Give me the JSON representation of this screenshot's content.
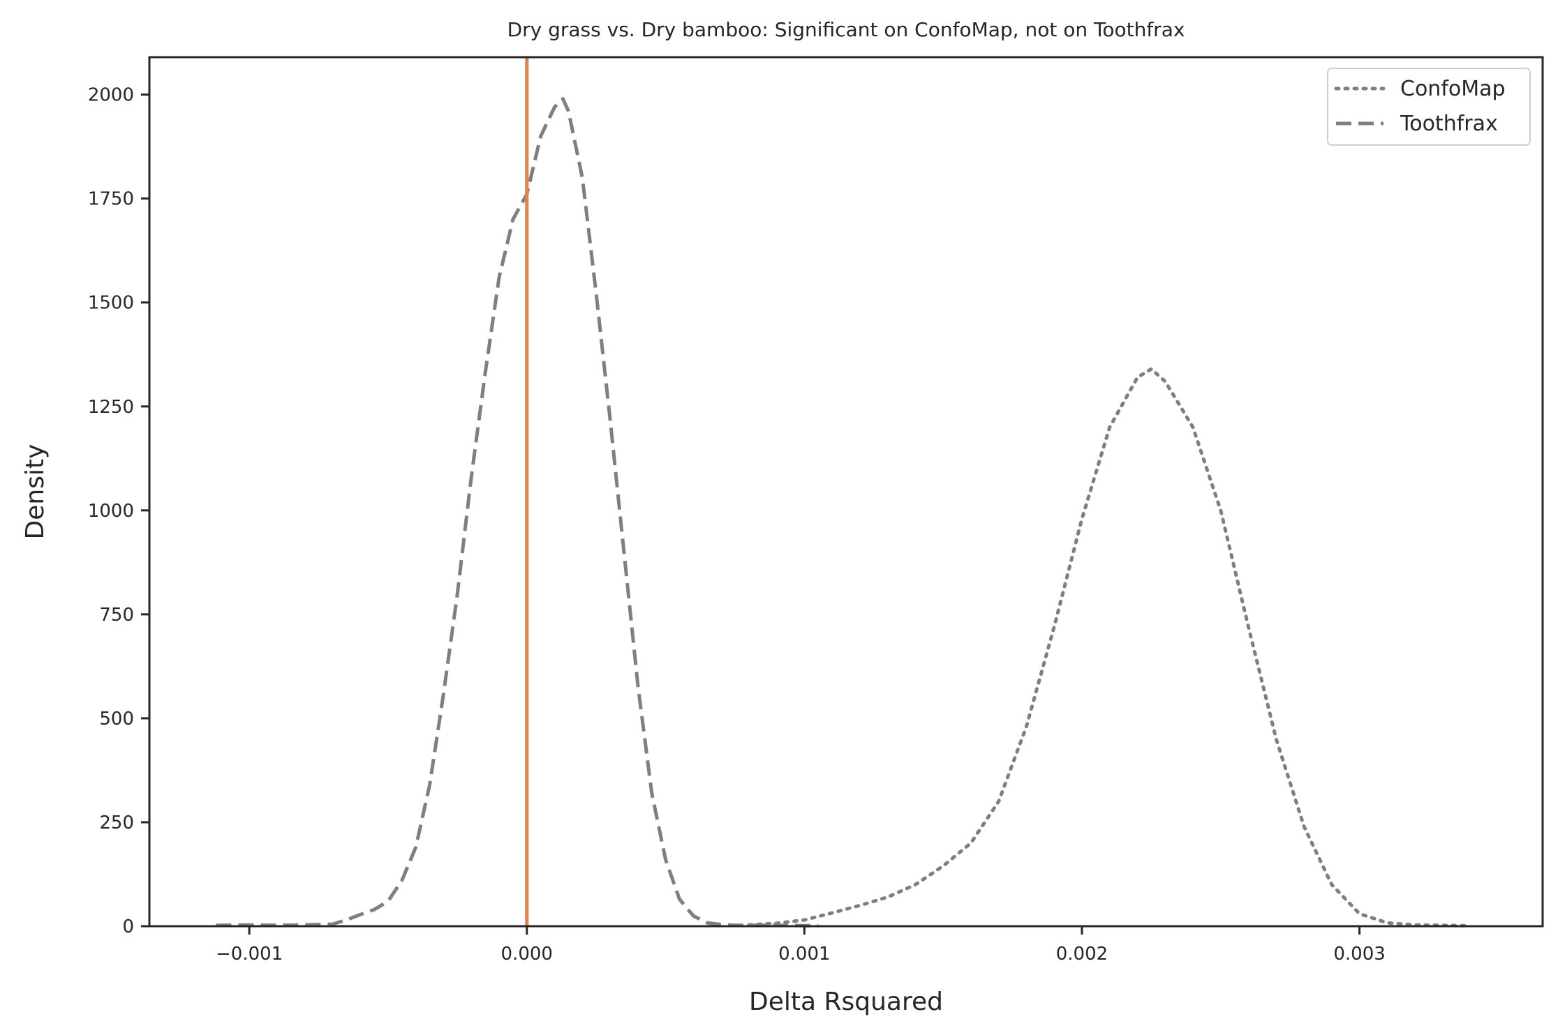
{
  "chart_data": {
    "type": "line",
    "title": "Dry grass vs. Dry bamboo: Significant on ConfoMap, not on Toothfrax",
    "xlabel": "Delta Rsquared",
    "ylabel": "Density",
    "xlim": [
      -0.00136,
      0.00366
    ],
    "ylim": [
      0,
      2090
    ],
    "xticks": [
      -0.001,
      0.0,
      0.001,
      0.002,
      0.003
    ],
    "xtick_labels": [
      "−0.001",
      "0.000",
      "0.001",
      "0.002",
      "0.003"
    ],
    "yticks": [
      0,
      250,
      500,
      750,
      1000,
      1250,
      1500,
      1750,
      2000
    ],
    "ytick_labels": [
      "0",
      "250",
      "500",
      "750",
      "1000",
      "1250",
      "1500",
      "1750",
      "2000"
    ],
    "grid": false,
    "legend_position": "top-right",
    "reference_line": {
      "x": 0.0,
      "color": "#dd8452"
    },
    "series": [
      {
        "name": "ConfoMap",
        "style": "dotted",
        "color": "#7f7f7f",
        "x": [
          0.0008,
          0.0009,
          0.001,
          0.0011,
          0.0012,
          0.0013,
          0.0014,
          0.0015,
          0.0016,
          0.0017,
          0.0018,
          0.0019,
          0.002,
          0.0021,
          0.0022,
          0.00225,
          0.0023,
          0.0024,
          0.0025,
          0.0026,
          0.0027,
          0.0028,
          0.0029,
          0.003,
          0.0031,
          0.0032,
          0.0034
        ],
        "y": [
          3,
          7,
          15,
          32,
          50,
          70,
          100,
          145,
          200,
          300,
          480,
          720,
          980,
          1200,
          1320,
          1340,
          1310,
          1200,
          1000,
          720,
          450,
          240,
          100,
          30,
          8,
          3,
          1
        ]
      },
      {
        "name": "Toothfrax",
        "style": "dashed",
        "color": "#7f7f7f",
        "x": [
          -0.00112,
          -0.001,
          -0.0009,
          -0.0008,
          -0.0007,
          -0.00065,
          -0.0006,
          -0.00055,
          -0.0005,
          -0.00045,
          -0.0004,
          -0.00035,
          -0.0003,
          -0.00025,
          -0.0002,
          -0.00015,
          -0.0001,
          -5e-05,
          0.0,
          5e-05,
          0.0001,
          0.00013,
          0.00015,
          0.0002,
          0.00025,
          0.0003,
          0.00035,
          0.0004,
          0.00045,
          0.0005,
          0.00055,
          0.0006,
          0.00065,
          0.0007,
          0.00075,
          0.0008,
          0.0009,
          0.00105
        ],
        "y": [
          2,
          3,
          2,
          3,
          5,
          15,
          28,
          40,
          60,
          110,
          190,
          340,
          560,
          800,
          1080,
          1330,
          1560,
          1700,
          1760,
          1900,
          1970,
          1990,
          1960,
          1800,
          1520,
          1220,
          900,
          580,
          320,
          160,
          65,
          25,
          8,
          4,
          2,
          2,
          2,
          1
        ]
      }
    ]
  }
}
